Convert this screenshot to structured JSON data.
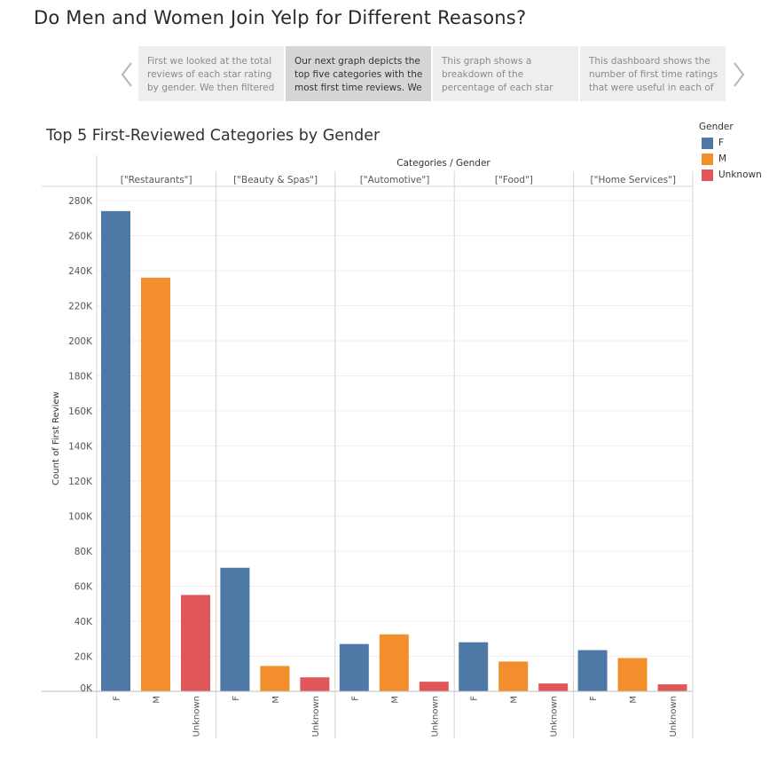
{
  "story": {
    "title": "Do Men and Women Join Yelp for Different Reasons?",
    "points": [
      {
        "lines": [
          "First we looked at  the total",
          "reviews of each star rating",
          "by gender. We then filtered"
        ],
        "active": false
      },
      {
        "lines": [
          "Our next graph depicts the",
          "top five categories with the",
          "most first time reviews. We"
        ],
        "active": true
      },
      {
        "lines": [
          "This graph shows a",
          "breakdown of the",
          "percentage of each star"
        ],
        "active": false
      },
      {
        "lines": [
          "This dashboard shows the",
          "number of first time ratings",
          "that were useful in each of"
        ],
        "active": false
      }
    ]
  },
  "legend": {
    "title": "Gender",
    "items": [
      {
        "label": "F",
        "color": "#4e79a7"
      },
      {
        "label": "M",
        "color": "#f28e2b"
      },
      {
        "label": "Unknown",
        "color": "#e15759"
      }
    ]
  },
  "chart_data": {
    "type": "bar",
    "title": "Top 5 First-Reviewed Categories by Gender",
    "column_header": "Categories / Gender",
    "ylabel": "Count of First Review",
    "ylim": [
      0,
      280000
    ],
    "yticks": [
      {
        "value": 0,
        "label": "0K"
      },
      {
        "value": 20000,
        "label": "20K"
      },
      {
        "value": 40000,
        "label": "40K"
      },
      {
        "value": 60000,
        "label": "60K"
      },
      {
        "value": 80000,
        "label": "80K"
      },
      {
        "value": 100000,
        "label": "100K"
      },
      {
        "value": 120000,
        "label": "120K"
      },
      {
        "value": 140000,
        "label": "140K"
      },
      {
        "value": 160000,
        "label": "160K"
      },
      {
        "value": 180000,
        "label": "180K"
      },
      {
        "value": 200000,
        "label": "200K"
      },
      {
        "value": 220000,
        "label": "220K"
      },
      {
        "value": 240000,
        "label": "240K"
      },
      {
        "value": 260000,
        "label": "260K"
      },
      {
        "value": 280000,
        "label": "280K"
      }
    ],
    "grid": true,
    "genders": [
      "F",
      "M",
      "Unknown"
    ],
    "colors": [
      "#4e79a7",
      "#f28e2b",
      "#e15759"
    ],
    "categories": [
      {
        "name": "[\"Restaurants\"]",
        "values": [
          274000,
          236000,
          55000
        ]
      },
      {
        "name": "[\"Beauty & Spas\"]",
        "values": [
          70500,
          14500,
          8000
        ]
      },
      {
        "name": "[\"Automotive\"]",
        "values": [
          27000,
          32500,
          5500
        ]
      },
      {
        "name": "[\"Food\"]",
        "values": [
          28000,
          17000,
          4500
        ]
      },
      {
        "name": "[\"Home Services\"]",
        "values": [
          23500,
          19000,
          4000
        ]
      }
    ]
  }
}
